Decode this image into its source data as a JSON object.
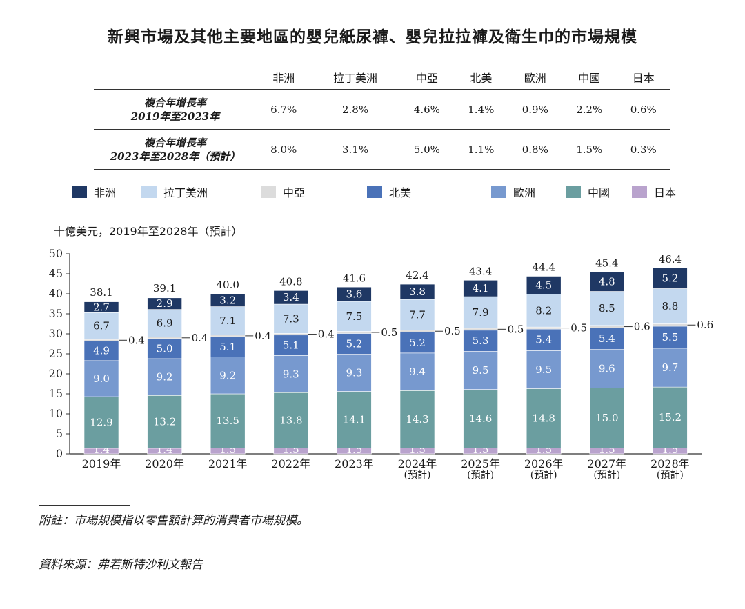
{
  "title": "新興市場及其他主要地區的嬰兒紙尿褲、嬰兒拉拉褲及衛生巾的市場規模",
  "cagr_table": {
    "headers": [
      "非洲",
      "拉丁美洲",
      "中亞",
      "北美",
      "歐洲",
      "中國",
      "日本"
    ],
    "rows": [
      {
        "label_line1": "複合年增長率",
        "label_line2": "2019年至2023年",
        "values": [
          "6.7%",
          "2.8%",
          "4.6%",
          "1.4%",
          "0.9%",
          "2.2%",
          "0.6%"
        ]
      },
      {
        "label_line1": "複合年增長率",
        "label_line2": "2023年至2028年（預計）",
        "values": [
          "8.0%",
          "3.1%",
          "5.0%",
          "1.1%",
          "0.8%",
          "1.5%",
          "0.3%"
        ]
      }
    ]
  },
  "unit_label": "十億美元，2019年至2028年（預計）",
  "footnote": "附註：市場規模指以零售額計算的消費者市場規模。",
  "source": "資料來源：弗若斯特沙利文報告",
  "chart_data": {
    "type": "bar",
    "stacked": true,
    "categories": [
      "2019年",
      "2020年",
      "2021年",
      "2022年",
      "2023年",
      "2024年\n(預計)",
      "2025年\n(預計)",
      "2026年\n(預計)",
      "2027年\n(預計)",
      "2028年\n(預計)"
    ],
    "series": [
      {
        "name": "日本",
        "color": "#b9a3cd",
        "values": [
          1.4,
          1.4,
          1.5,
          1.5,
          1.5,
          1.5,
          1.5,
          1.5,
          1.5,
          1.5
        ]
      },
      {
        "name": "中國",
        "color": "#6b9ea0",
        "values": [
          12.9,
          13.2,
          13.5,
          13.8,
          14.1,
          14.3,
          14.6,
          14.8,
          15.0,
          15.2
        ]
      },
      {
        "name": "歐洲",
        "color": "#7799cf",
        "values": [
          9.0,
          9.2,
          9.2,
          9.3,
          9.3,
          9.4,
          9.5,
          9.5,
          9.6,
          9.7
        ]
      },
      {
        "name": "北美",
        "color": "#4a72b8",
        "values": [
          4.9,
          5.0,
          5.1,
          5.1,
          5.2,
          5.2,
          5.3,
          5.4,
          5.4,
          5.5
        ]
      },
      {
        "name": "中亞",
        "color": "#dcdcdc",
        "values": [
          0.4,
          0.4,
          0.4,
          0.4,
          0.5,
          0.5,
          0.5,
          0.5,
          0.6,
          0.6
        ]
      },
      {
        "name": "拉丁美洲",
        "color": "#c3d8ef",
        "values": [
          6.7,
          6.9,
          7.1,
          7.3,
          7.5,
          7.7,
          7.9,
          8.2,
          8.5,
          8.8
        ]
      },
      {
        "name": "非洲",
        "color": "#1f3864",
        "values": [
          2.7,
          2.9,
          3.2,
          3.4,
          3.6,
          3.8,
          4.1,
          4.5,
          4.8,
          5.2
        ]
      }
    ],
    "totals": [
      38.1,
      39.1,
      40.0,
      40.8,
      41.6,
      42.4,
      43.4,
      44.4,
      45.4,
      46.4
    ],
    "ylim": [
      0,
      50
    ],
    "yticks": [
      0,
      5,
      10,
      15,
      20,
      25,
      30,
      35,
      40,
      45,
      50
    ],
    "legend_order": [
      "非洲",
      "拉丁美洲",
      "中亞",
      "北美",
      "歐洲",
      "中國",
      "日本"
    ],
    "legend_placement": "top"
  }
}
